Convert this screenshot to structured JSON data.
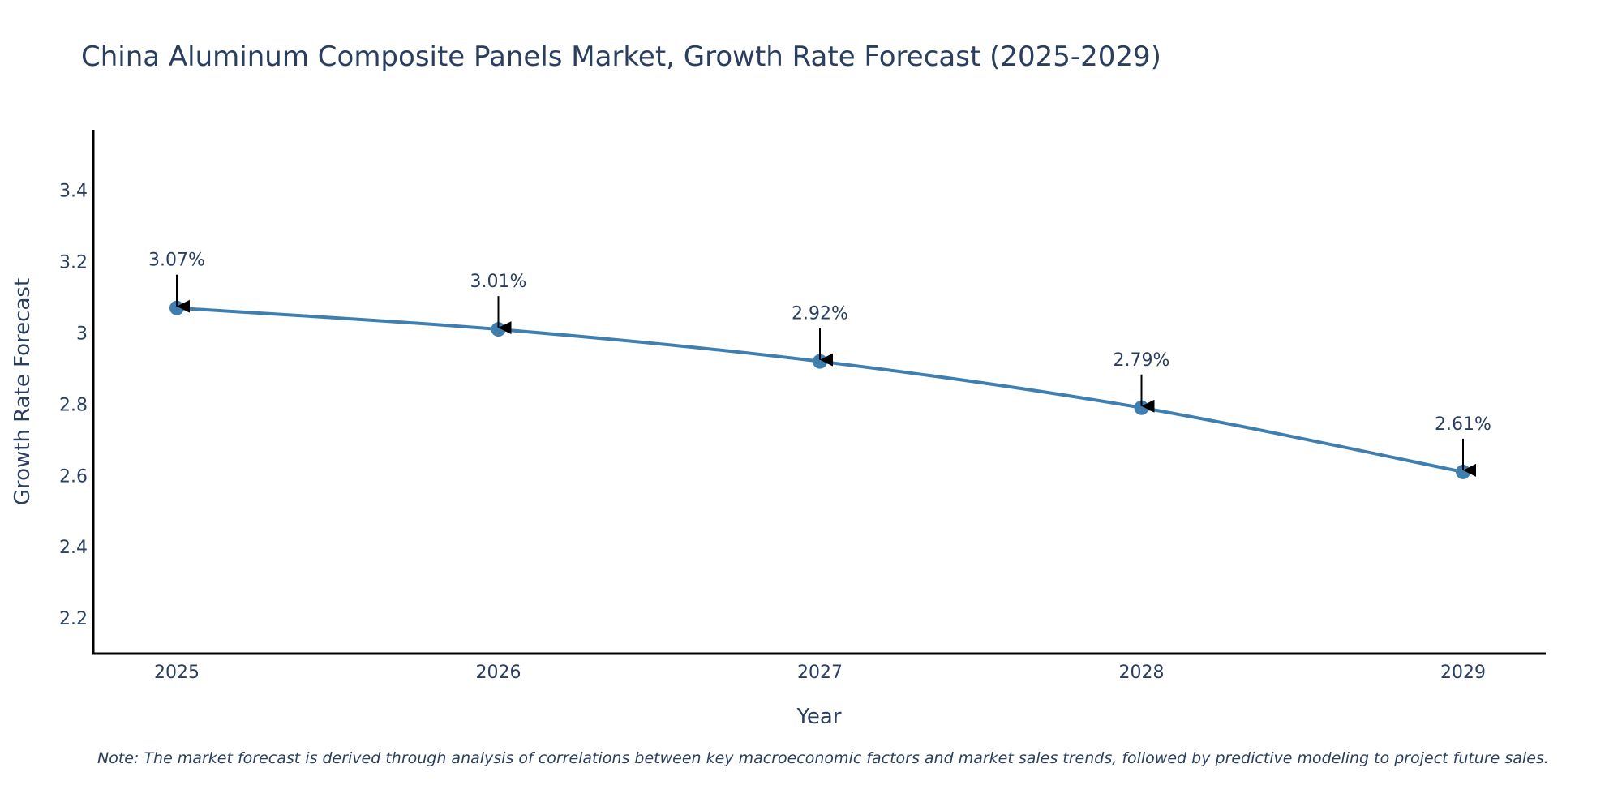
{
  "chart_data": {
    "type": "line",
    "title": "China Aluminum Composite Panels Market, Growth Rate Forecast (2025-2029)",
    "xlabel": "Year",
    "ylabel": "Growth Rate Forecast",
    "categories": [
      "2025",
      "2026",
      "2027",
      "2028",
      "2029"
    ],
    "series": [
      {
        "name": "Growth Rate Forecast",
        "values": [
          3.07,
          3.01,
          2.92,
          2.79,
          2.61
        ],
        "labels": [
          "3.07%",
          "3.01%",
          "2.92%",
          "2.79%",
          "2.61%"
        ]
      }
    ],
    "ylim": [
      2.1,
      3.57
    ],
    "yticks": [
      2.2,
      2.4,
      2.6,
      2.8,
      3,
      3.2,
      3.4
    ],
    "ytick_labels": [
      "2.2",
      "2.4",
      "2.6",
      "2.8",
      "3",
      "3.2",
      "3.4"
    ],
    "grid": false,
    "note": "Note: The market forecast is derived through analysis of correlations between key macroeconomic factors and market sales trends, followed by predictive modeling to project future sales."
  },
  "colors": {
    "line": "#3f7fb0",
    "marker": "#3f7fb0",
    "axis": "#000000",
    "arrow": "#000000",
    "text": "#2a3f5f"
  }
}
